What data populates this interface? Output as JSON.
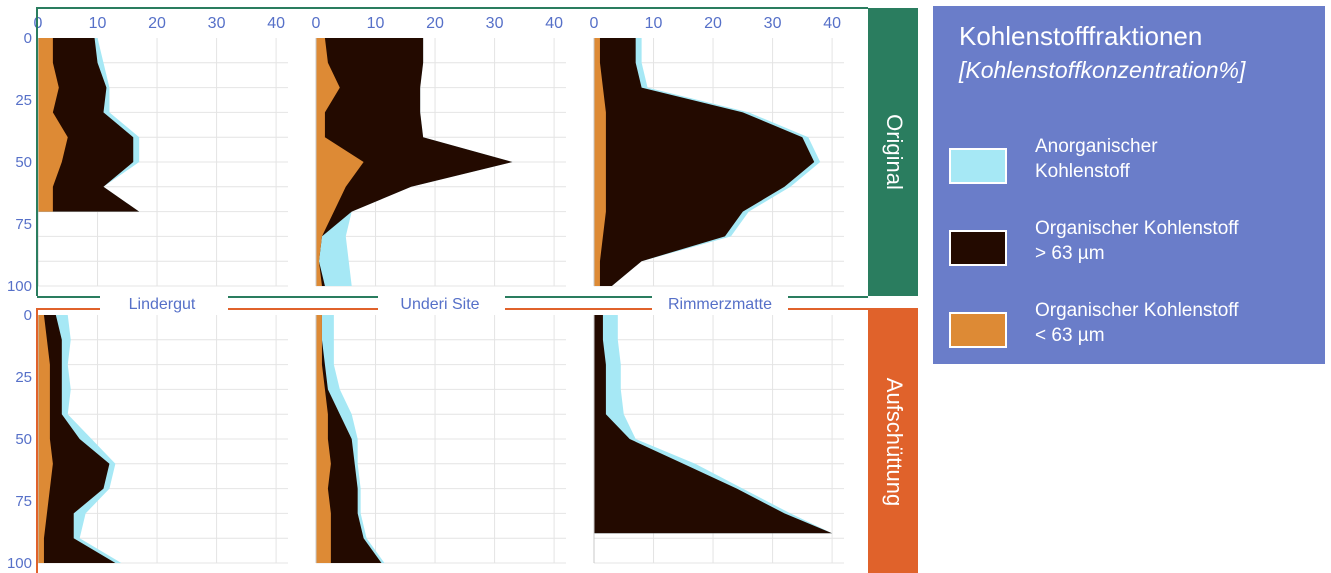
{
  "colors": {
    "inorganic": "#a6e8f5",
    "organic_coarse": "#230a00",
    "organic_fine": "#dd8a35",
    "original_band": "#2a7d5f",
    "fill_band": "#e0622b",
    "legend_bg": "#6a7dc9",
    "tick_label": "#5670c8"
  },
  "legend": {
    "title": "Kohlenstofffraktionen",
    "subtitle": "[Kohlenstoffkonzentration%]",
    "items": [
      {
        "label_line1": "Anorganischer",
        "label_line2": "Kohlenstoff",
        "color": "#a6e8f5"
      },
      {
        "label_line1": "Organischer Kohlenstoff",
        "label_line2": "> 63 µm",
        "color": "#230a00"
      },
      {
        "label_line1": "Organischer Kohlenstoff",
        "label_line2": "< 63 µm",
        "color": "#dd8a35"
      }
    ]
  },
  "chart_data": {
    "type": "area",
    "x_ticks": [
      "0",
      "10",
      "20",
      "30",
      "40"
    ],
    "y_ticks": [
      "0",
      "25",
      "50",
      "75",
      "100"
    ],
    "xlim": [
      0,
      42
    ],
    "ylim": [
      0,
      100
    ],
    "sites": [
      "Lindergut",
      "Underi Site",
      "Rimmerzmatte"
    ],
    "treatments": [
      "Original",
      "Aufschüttung"
    ],
    "series_order": [
      "organic_fine",
      "organic_coarse",
      "inorganic"
    ],
    "panels": [
      {
        "treatment": "Original",
        "site": "Lindergut",
        "depth": [
          0,
          10,
          20,
          30,
          40,
          50,
          60,
          70
        ],
        "organic_fine": [
          2.5,
          2.5,
          3.5,
          2.5,
          5,
          4,
          2.5,
          2.5
        ],
        "organic_coarse_cum": [
          9.5,
          10,
          11.5,
          11,
          16,
          16,
          11,
          17
        ],
        "total": [
          10,
          11,
          12,
          12,
          17,
          17,
          11,
          17
        ]
      },
      {
        "treatment": "Original",
        "site": "Underi Site",
        "depth": [
          0,
          10,
          20,
          30,
          40,
          50,
          60,
          70,
          80,
          90,
          100
        ],
        "organic_fine": [
          1.5,
          2,
          4,
          1.5,
          1.5,
          8,
          5,
          3,
          1,
          0.5,
          1
        ],
        "organic_coarse_cum": [
          18,
          18,
          17.5,
          17.5,
          18,
          33,
          16,
          6,
          1,
          0.5,
          1.5
        ],
        "total": [
          18,
          18,
          17.5,
          17.5,
          18,
          33,
          16,
          6,
          5,
          5.5,
          6
        ]
      },
      {
        "treatment": "Original",
        "site": "Rimmerzmatte",
        "depth": [
          0,
          10,
          20,
          30,
          40,
          50,
          60,
          70,
          80,
          90,
          100
        ],
        "organic_fine": [
          1,
          1,
          1.5,
          2,
          2,
          2,
          2,
          2,
          1.5,
          1,
          1
        ],
        "organic_coarse_cum": [
          7,
          7,
          8,
          25,
          35,
          37,
          32,
          25,
          22,
          8,
          3
        ],
        "total": [
          8,
          8,
          9,
          26,
          36,
          38,
          33,
          26,
          23,
          8,
          3
        ]
      },
      {
        "treatment": "Aufschüttung",
        "site": "Lindergut",
        "depth": [
          0,
          10,
          20,
          30,
          40,
          50,
          60,
          70,
          80,
          90,
          100
        ],
        "organic_fine": [
          1,
          1.5,
          2,
          2,
          2,
          2,
          2.5,
          2,
          1.5,
          1,
          1
        ],
        "organic_coarse_cum": [
          3,
          4,
          4,
          4,
          4,
          7,
          12,
          11,
          6,
          6,
          13
        ],
        "total": [
          5,
          5.5,
          5,
          5.5,
          5,
          9,
          13,
          12,
          8,
          7,
          14
        ]
      },
      {
        "treatment": "Aufschüttung",
        "site": "Underi Site",
        "depth": [
          0,
          10,
          20,
          30,
          40,
          50,
          60,
          70,
          80,
          90,
          100
        ],
        "organic_fine": [
          1,
          1,
          1,
          1.5,
          2,
          2,
          2.5,
          2,
          2.5,
          2.5,
          2.5
        ],
        "organic_coarse_cum": [
          1,
          1,
          1.5,
          2,
          4,
          6,
          6.5,
          7,
          7,
          8,
          11
        ],
        "total": [
          3,
          3,
          3,
          4,
          6,
          7,
          7,
          7.5,
          7.5,
          8.5,
          11.5
        ]
      },
      {
        "treatment": "Aufschüttung",
        "site": "Rimmerzmatte",
        "depth": [
          0,
          10,
          20,
          30,
          40,
          50,
          60,
          70,
          80,
          88
        ],
        "organic_fine": [
          0,
          0,
          0,
          0,
          0,
          0,
          0,
          0,
          0,
          0
        ],
        "organic_coarse_cum": [
          1.5,
          1.5,
          2,
          2,
          2,
          6,
          15,
          24,
          32,
          40
        ],
        "total": [
          4,
          4,
          4.5,
          4.5,
          5,
          7,
          17,
          25,
          33,
          40
        ]
      }
    ]
  }
}
